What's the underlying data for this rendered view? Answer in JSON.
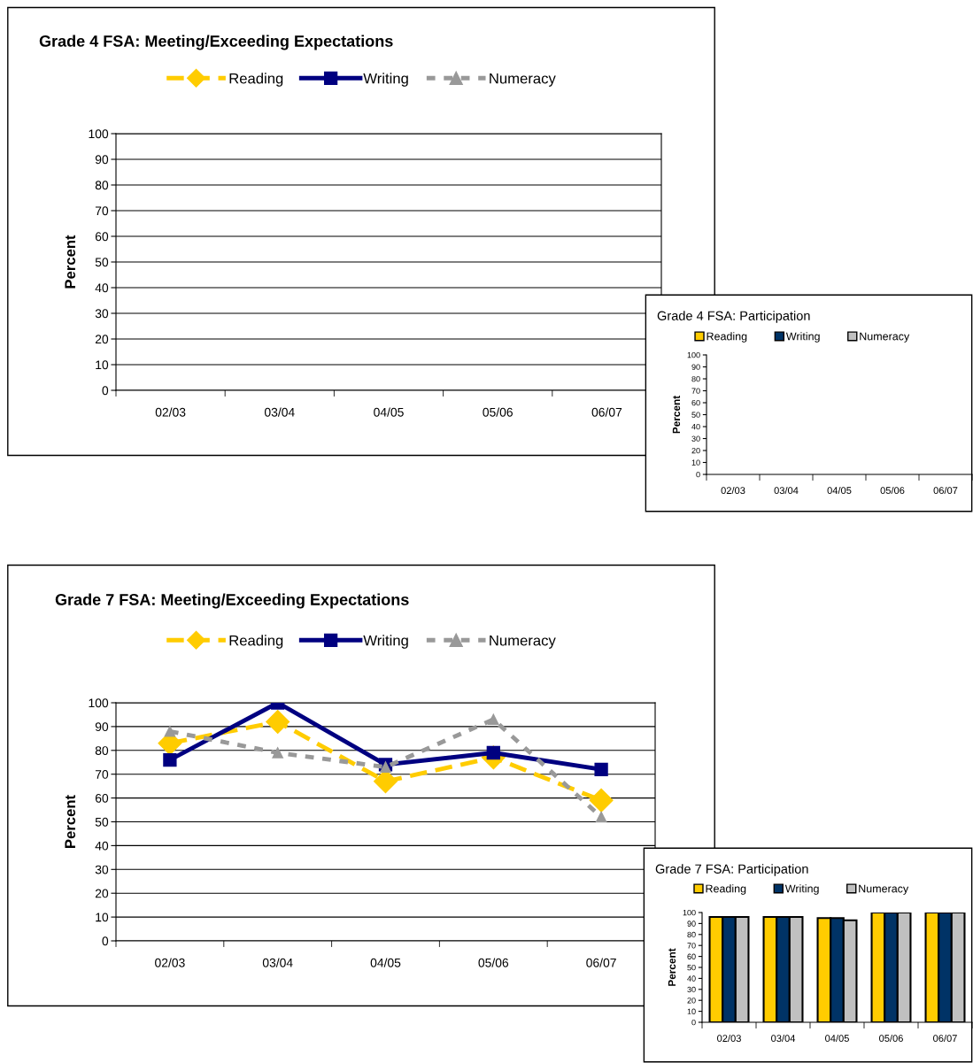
{
  "chart_data": [
    {
      "type": "line",
      "title": "Grade 4 FSA: Meeting/Exceeding Expectations",
      "ylabel": "Percent",
      "categories": [
        "02/03",
        "03/04",
        "04/05",
        "05/06",
        "06/07"
      ],
      "ylim": [
        0,
        100
      ],
      "yticks": [
        0,
        10,
        20,
        30,
        40,
        50,
        60,
        70,
        80,
        90,
        100
      ],
      "grid": "y",
      "legend": "top",
      "series": [
        {
          "name": "Reading",
          "color": "#ffcc00",
          "marker": "diamond",
          "line_style": "dashed",
          "values": [
            null,
            null,
            null,
            null,
            null
          ]
        },
        {
          "name": "Writing",
          "color": "#000080",
          "marker": "square",
          "line_style": "solid",
          "values": [
            null,
            null,
            null,
            null,
            null
          ]
        },
        {
          "name": "Numeracy",
          "color": "#999999",
          "marker": "triangle",
          "line_style": "dotted",
          "values": [
            null,
            null,
            null,
            null,
            null
          ]
        }
      ]
    },
    {
      "type": "bar",
      "title": "Grade 4 FSA: Participation",
      "ylabel": "Percent",
      "categories": [
        "02/03",
        "03/04",
        "04/05",
        "05/06",
        "06/07"
      ],
      "ylim": [
        0,
        100
      ],
      "yticks": [
        0,
        10,
        20,
        30,
        40,
        50,
        60,
        70,
        80,
        90,
        100
      ],
      "legend": "top",
      "series": [
        {
          "name": "Reading",
          "color": "#ffcc00",
          "values": [
            null,
            null,
            null,
            null,
            null
          ]
        },
        {
          "name": "Writing",
          "color": "#003366",
          "values": [
            null,
            null,
            null,
            null,
            null
          ]
        },
        {
          "name": "Numeracy",
          "color": "#c0c0c0",
          "values": [
            null,
            null,
            null,
            null,
            null
          ]
        }
      ]
    },
    {
      "type": "line",
      "title": "Grade 7 FSA: Meeting/Exceeding Expectations",
      "ylabel": "Percent",
      "categories": [
        "02/03",
        "03/04",
        "04/05",
        "05/06",
        "06/07"
      ],
      "ylim": [
        0,
        100
      ],
      "yticks": [
        0,
        10,
        20,
        30,
        40,
        50,
        60,
        70,
        80,
        90,
        100
      ],
      "grid": "y",
      "legend": "top",
      "series": [
        {
          "name": "Reading",
          "color": "#ffcc00",
          "marker": "diamond",
          "line_style": "dashed",
          "values": [
            83,
            92,
            67,
            77,
            59
          ]
        },
        {
          "name": "Writing",
          "color": "#000080",
          "marker": "square",
          "line_style": "solid",
          "values": [
            76,
            100,
            74,
            79,
            72
          ]
        },
        {
          "name": "Numeracy",
          "color": "#999999",
          "marker": "triangle",
          "line_style": "dotted",
          "values": [
            88,
            79,
            73,
            93,
            52
          ]
        }
      ]
    },
    {
      "type": "bar",
      "title": "Grade 7 FSA: Participation",
      "ylabel": "Percent",
      "categories": [
        "02/03",
        "03/04",
        "04/05",
        "05/06",
        "06/07"
      ],
      "ylim": [
        0,
        100
      ],
      "yticks": [
        0,
        10,
        20,
        30,
        40,
        50,
        60,
        70,
        80,
        90,
        100
      ],
      "legend": "top",
      "series": [
        {
          "name": "Reading",
          "color": "#ffcc00",
          "values": [
            96,
            96,
            95,
            100,
            100
          ]
        },
        {
          "name": "Writing",
          "color": "#003366",
          "values": [
            96,
            96,
            95,
            100,
            100
          ]
        },
        {
          "name": "Numeracy",
          "color": "#c0c0c0",
          "values": [
            96,
            96,
            93,
            100,
            100
          ]
        }
      ]
    }
  ]
}
